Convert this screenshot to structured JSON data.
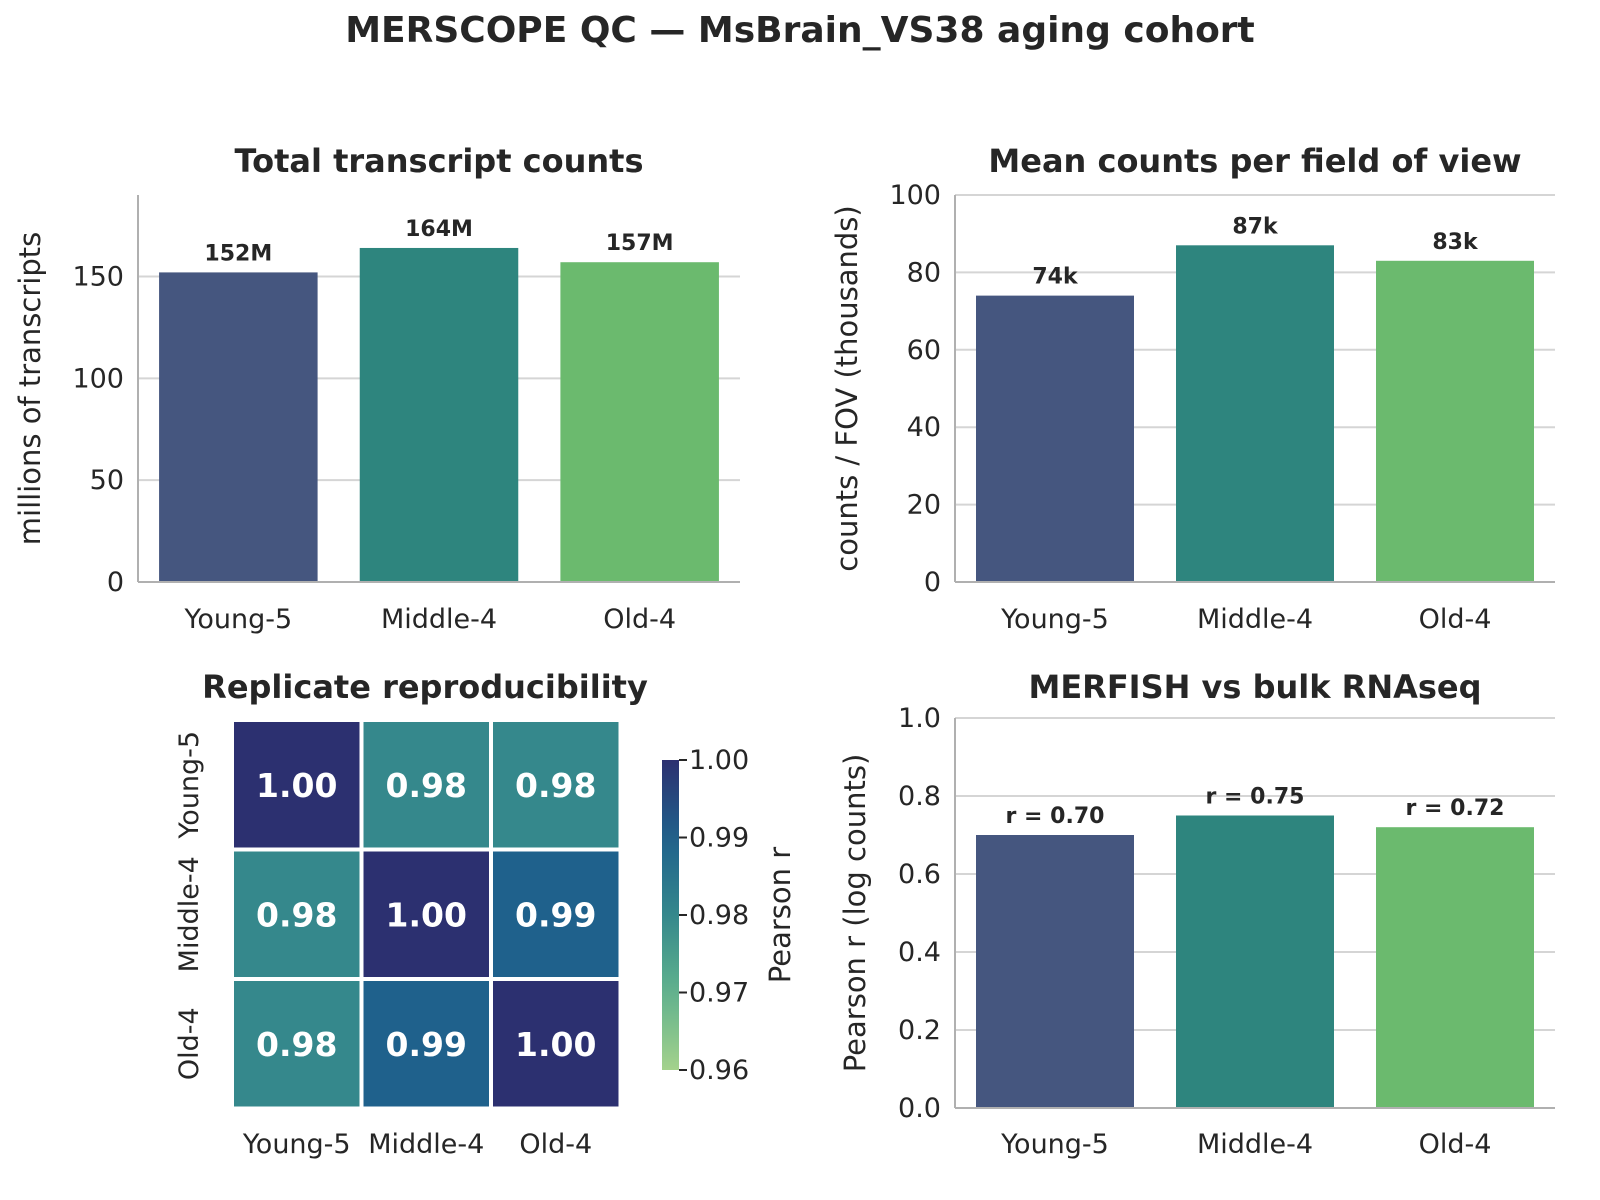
{
  "figure_title": "MERSCOPE QC — MsBrain_VS38 aging cohort",
  "colors": {
    "young": "#45567f",
    "middle": "#2e857e",
    "old": "#6bba6e",
    "grid": "#d5d5d5",
    "axis": "#b0b0b0",
    "text": "#262626"
  },
  "chart_data": [
    {
      "type": "bar",
      "title": "Total transcript counts",
      "categories": [
        "Young-5",
        "Middle-4",
        "Old-4"
      ],
      "values": [
        152,
        164,
        157
      ],
      "value_labels": [
        "152M",
        "164M",
        "157M"
      ],
      "xlabel": "",
      "ylabel": "millions of transcripts",
      "ylim": [
        0,
        190
      ],
      "yticks": [
        0,
        50,
        100,
        150
      ],
      "grid": true
    },
    {
      "type": "bar",
      "title": "Mean counts per field of view",
      "categories": [
        "Young-5",
        "Middle-4",
        "Old-4"
      ],
      "values": [
        74,
        87,
        83
      ],
      "value_labels": [
        "74k",
        "87k",
        "83k"
      ],
      "xlabel": "",
      "ylabel": "counts / FOV (thousands)",
      "ylim": [
        0,
        100
      ],
      "yticks": [
        0,
        20,
        40,
        60,
        80,
        100
      ],
      "grid": true
    },
    {
      "type": "heatmap",
      "title": "Replicate reproducibility",
      "row_labels": [
        "Young-5",
        "Middle-4",
        "Old-4"
      ],
      "col_labels": [
        "Young-5",
        "Middle-4",
        "Old-4"
      ],
      "values": [
        [
          1.0,
          0.98,
          0.98
        ],
        [
          0.98,
          1.0,
          0.99
        ],
        [
          0.98,
          0.99,
          1.0
        ]
      ],
      "cell_labels": [
        [
          "1.00",
          "0.98",
          "0.98"
        ],
        [
          "0.98",
          "1.00",
          "0.99"
        ],
        [
          "0.98",
          "0.99",
          "1.00"
        ]
      ],
      "colorbar_label": "Pearson r",
      "colorbar_range": [
        0.96,
        1.0
      ],
      "colorbar_ticks": [
        "0.96",
        "0.97",
        "0.98",
        "0.99",
        "1.00"
      ],
      "colormap": "crest"
    },
    {
      "type": "bar",
      "title": "MERFISH vs bulk RNAseq",
      "categories": [
        "Young-5",
        "Middle-4",
        "Old-4"
      ],
      "values": [
        0.7,
        0.75,
        0.72
      ],
      "value_labels": [
        "r = 0.70",
        "r = 0.75",
        "r = 0.72"
      ],
      "xlabel": "",
      "ylabel": "Pearson r (log counts)",
      "ylim": [
        0,
        1.0
      ],
      "yticks": [
        0.0,
        0.2,
        0.4,
        0.6,
        0.8,
        1.0
      ],
      "ytick_labels": [
        "0.0",
        "0.2",
        "0.4",
        "0.6",
        "0.8",
        "1.0"
      ],
      "grid": true
    }
  ]
}
